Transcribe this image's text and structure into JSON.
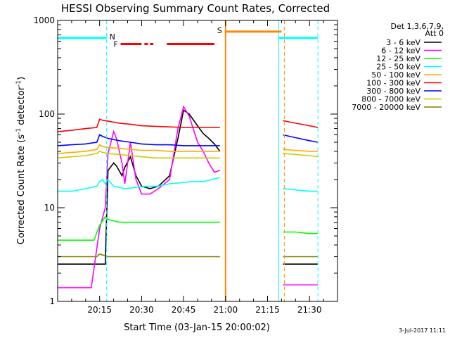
{
  "chart_data": {
    "type": "line",
    "title": "HESSI Observing Summary Count Rates, Corrected",
    "xlabel": "Start Time (03-Jan-15 20:00:02)",
    "ylabel": "Corrected Count Rate (s⁻¹ detector⁻¹)",
    "ylabel_main": "Corrected Count Rate (s",
    "ylabel_sup1": "-1",
    "ylabel_mid": " detector",
    "ylabel_sup2": "-1",
    "ylabel_end": ")",
    "x_unit": "minutes after 20:00",
    "xlim": [
      0,
      100
    ],
    "ylim": [
      1,
      1000
    ],
    "y_scale": "log",
    "x_ticks": [
      {
        "value": 15,
        "label": "20:15"
      },
      {
        "value": 30,
        "label": "20:30"
      },
      {
        "value": 45,
        "label": "20:45"
      },
      {
        "value": 60,
        "label": "21:00"
      },
      {
        "value": 75,
        "label": "21:15"
      },
      {
        "value": 90,
        "label": "21:30"
      }
    ],
    "y_ticks": [
      {
        "value": 1,
        "label": "1"
      },
      {
        "value": 10,
        "label": "10"
      },
      {
        "value": 100,
        "label": "100"
      },
      {
        "value": 1000,
        "label": "1000"
      }
    ],
    "legend_title": [
      "Det 1,3,6,7,9,",
      "Att 0"
    ],
    "legend_position": "right",
    "data_gaps": [
      [
        58.5,
        80.5
      ]
    ],
    "series": [
      {
        "name": "3 - 6 keV",
        "color": "#000000",
        "x": [
          0,
          17,
          18,
          20,
          21,
          23,
          24,
          26,
          28,
          30,
          33,
          36,
          40,
          43,
          45,
          47,
          50,
          52,
          54,
          56,
          58
        ],
        "y": [
          2.5,
          2.5,
          25,
          30,
          28,
          22,
          27,
          35,
          22,
          17,
          16,
          17,
          22,
          55,
          110,
          100,
          75,
          62,
          55,
          48,
          40
        ]
      },
      {
        "name": "6 - 12 keV",
        "color": "#ff00ff",
        "x": [
          0,
          12,
          15,
          17,
          18,
          20,
          21,
          23,
          24,
          26,
          28,
          30,
          33,
          36,
          40,
          43,
          45,
          47,
          50,
          52,
          54,
          56,
          58
        ],
        "y": [
          1.4,
          1.4,
          6,
          10,
          38,
          65,
          55,
          30,
          18,
          50,
          20,
          14,
          14,
          16,
          20,
          70,
          120,
          95,
          50,
          40,
          30,
          24,
          25
        ]
      },
      {
        "name": "12 - 25 keV",
        "color": "#00ff00",
        "x": [
          0,
          13,
          15,
          17,
          18,
          22,
          30,
          40,
          50,
          58
        ],
        "y": [
          4.5,
          4.5,
          6.5,
          8,
          7.5,
          7,
          7,
          7,
          7,
          7
        ]
      },
      {
        "name": "25 - 50 keV",
        "color": "#00ffff",
        "x": [
          0,
          5,
          10,
          14,
          15,
          16,
          17,
          18,
          20,
          24,
          28,
          32,
          36,
          40,
          44,
          48,
          52,
          55,
          58
        ],
        "y": [
          15,
          15,
          16,
          17,
          19,
          20,
          18,
          20,
          17,
          16,
          16.5,
          17,
          17,
          18,
          18.5,
          19,
          19,
          20,
          21
        ]
      },
      {
        "name": "50 - 100 keV",
        "color": "#ffaa00",
        "x": [
          0,
          5,
          10,
          14,
          15,
          16,
          18,
          22,
          26,
          30,
          35,
          40,
          45,
          50,
          55,
          58
        ],
        "y": [
          38,
          39,
          40,
          42,
          47,
          45,
          44,
          43,
          42,
          41,
          41,
          40,
          40,
          40,
          40,
          40
        ]
      },
      {
        "name": "100 - 300 keV",
        "color": "#ff0000",
        "x": [
          0,
          5,
          10,
          14,
          15,
          16,
          18,
          22,
          26,
          30,
          35,
          40,
          45,
          50,
          55,
          58
        ],
        "y": [
          65,
          67,
          70,
          72,
          88,
          86,
          84,
          80,
          78,
          75,
          74,
          73,
          72,
          72,
          72,
          72
        ]
      },
      {
        "name": "300 - 800 keV",
        "color": "#0000ff",
        "x": [
          0,
          5,
          10,
          14,
          15,
          16,
          18,
          22,
          26,
          30,
          35,
          40,
          45,
          50,
          55,
          58
        ],
        "y": [
          46,
          47,
          48,
          50,
          60,
          58,
          55,
          52,
          50,
          48,
          47,
          47,
          46,
          46,
          46,
          46
        ]
      },
      {
        "name": "800 - 7000 keV",
        "color": "#cccc00",
        "x": [
          0,
          5,
          10,
          14,
          15,
          16,
          18,
          22,
          26,
          30,
          35,
          40,
          45,
          50,
          55,
          58
        ],
        "y": [
          34,
          35,
          36,
          38,
          40,
          39,
          38,
          37,
          36,
          35,
          34,
          34,
          34,
          34,
          34,
          34
        ]
      },
      {
        "name": "7000 - 20000 keV",
        "color": "#808000",
        "x": [
          0,
          10,
          14,
          15,
          18,
          20,
          25,
          30,
          35,
          40,
          45,
          50,
          55,
          58
        ],
        "y": [
          3,
          3,
          3,
          3.2,
          3,
          3,
          3,
          3,
          3,
          3,
          3,
          3,
          3,
          3
        ]
      }
    ],
    "series_after_gap": {
      "x": [
        80.5,
        85,
        90,
        93
      ],
      "values": {
        "3 - 6 keV": [
          2.5,
          2.5,
          2.5,
          2.5
        ],
        "6 - 12 keV": [
          1.5,
          1.5,
          1.5,
          1.5
        ],
        "12 - 25 keV": [
          5.5,
          5.5,
          5.3,
          5.3
        ],
        "25 - 50 keV": [
          16,
          15.5,
          15,
          15
        ],
        "50 - 100 keV": [
          42,
          41,
          40,
          40
        ],
        "100 - 300 keV": [
          85,
          80,
          75,
          72
        ],
        "300 - 800 keV": [
          60,
          56,
          52,
          50
        ],
        "800 - 7000 keV": [
          38,
          37,
          36,
          35
        ],
        "7000 - 20000 keV": [
          3,
          3,
          3,
          3
        ]
      }
    },
    "annotations": {
      "night": {
        "label": "N",
        "color": "#00ffff",
        "y": 650,
        "spans": [
          [
            0,
            17.5
          ],
          [
            79,
            93
          ]
        ],
        "boundaries": [
          17.5,
          79,
          93
        ]
      },
      "flare": {
        "label": "F",
        "color": "#ff0000",
        "y": 560,
        "spans": [
          [
            22.5,
            30
          ],
          [
            31,
            32.3
          ],
          [
            33,
            34.2
          ],
          [
            39,
            56
          ]
        ]
      },
      "saa": {
        "label": "S",
        "color": "#ff8800",
        "y": 760,
        "spans": [
          [
            60,
            80
          ]
        ],
        "boundaries": [
          60,
          81
        ]
      }
    },
    "timestamp": "3-Jul-2017 11:11"
  }
}
